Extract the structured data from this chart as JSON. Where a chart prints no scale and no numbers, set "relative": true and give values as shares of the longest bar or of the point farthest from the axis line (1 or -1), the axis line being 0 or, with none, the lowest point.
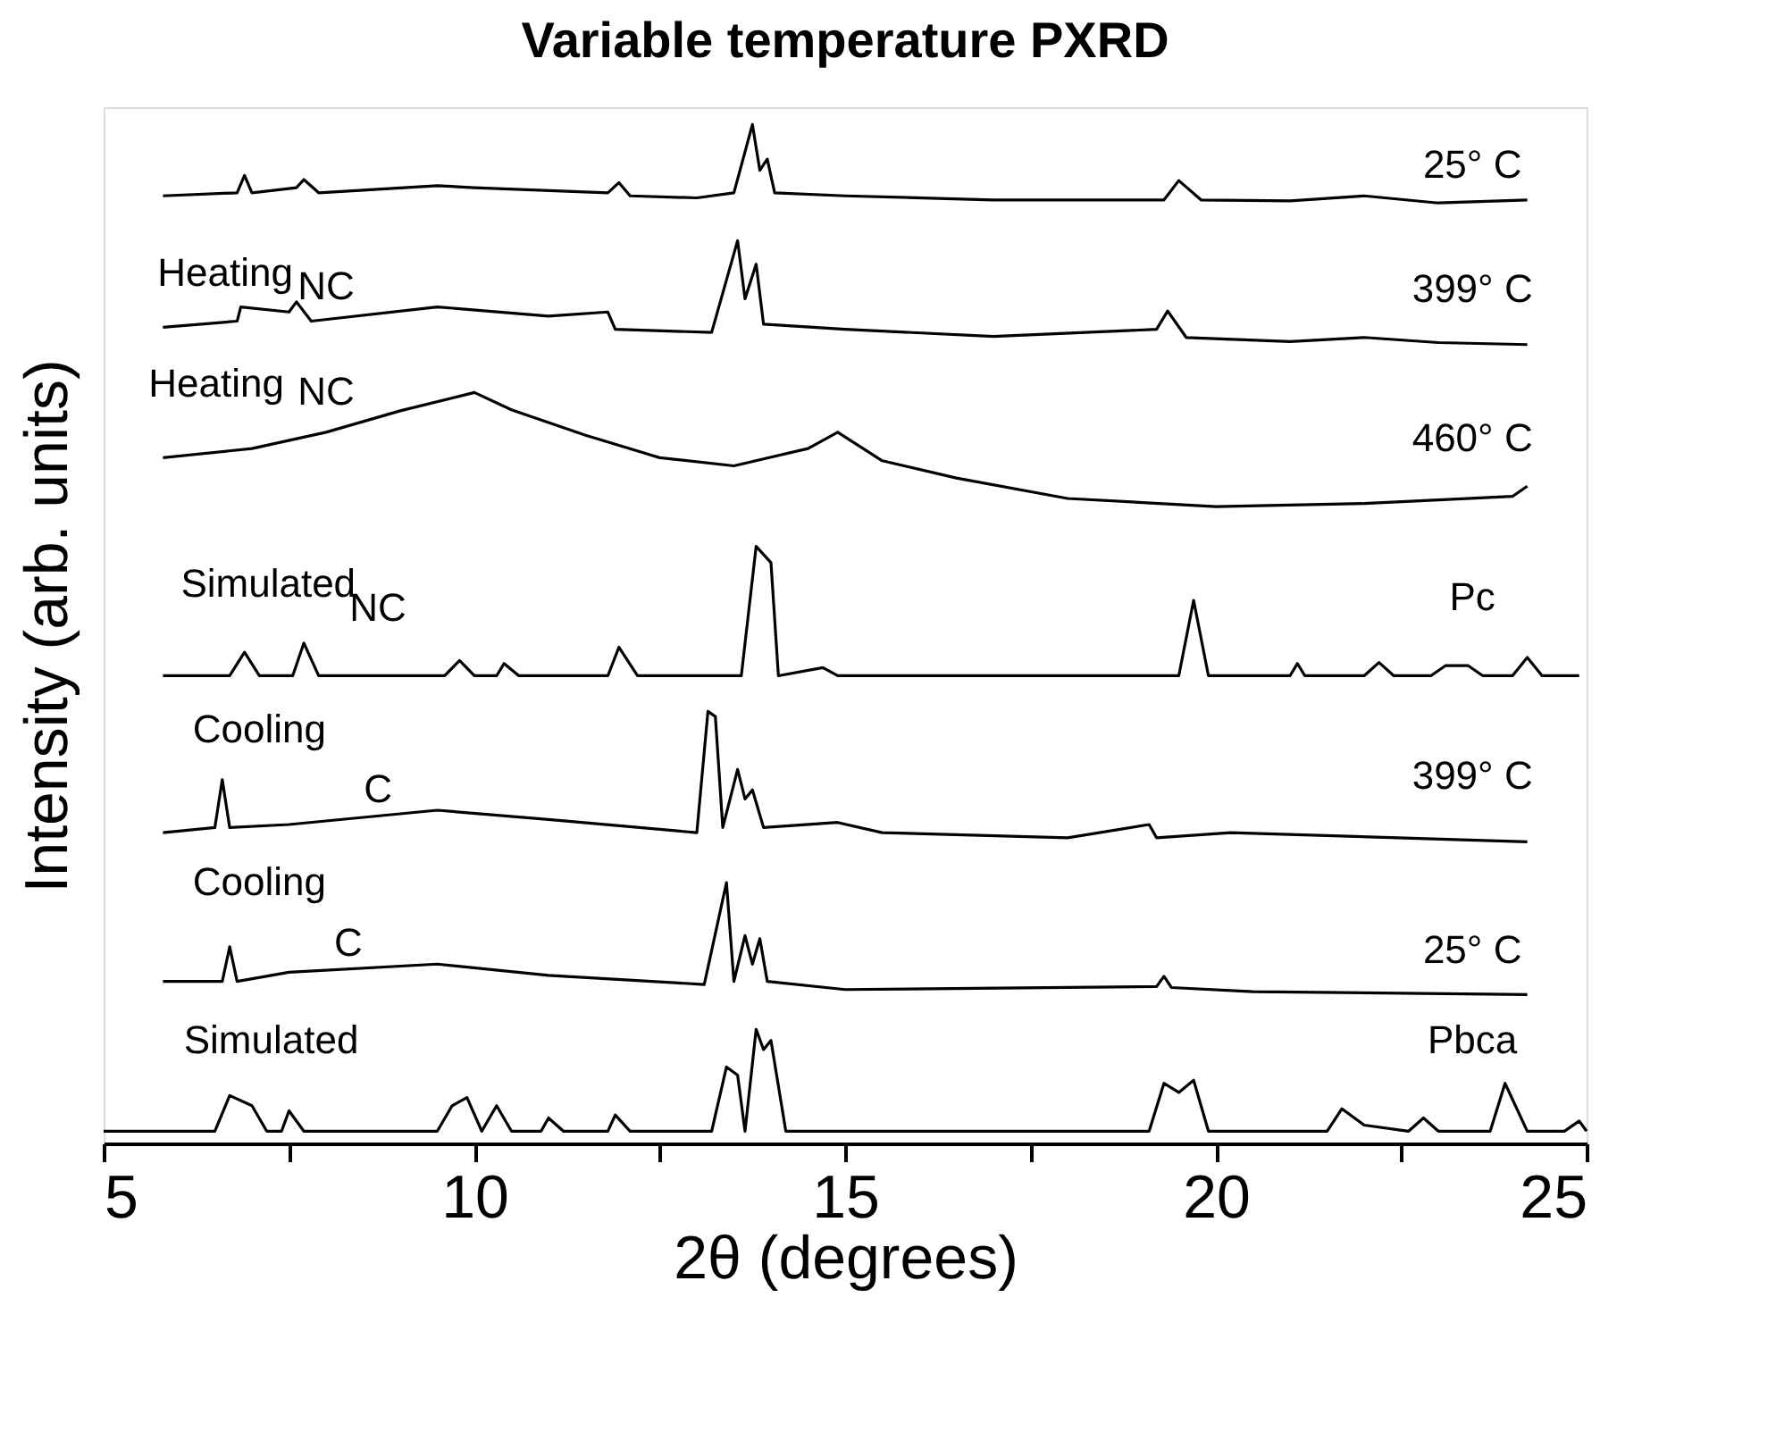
{
  "chart_data": {
    "type": "line",
    "title": "Variable temperature PXRD",
    "xlabel": "2θ (degrees)",
    "ylabel": "Intensity (arb. units)",
    "relative": true,
    "grid": false,
    "marker": "none",
    "line_style": "solid",
    "xlim": [
      5,
      25
    ],
    "xticks": [
      5,
      {
        "value": 7.5,
        "label": null
      },
      10,
      {
        "value": 12.5,
        "label": null
      },
      15,
      {
        "value": 17.5,
        "label": null
      },
      20,
      {
        "value": 22.5,
        "label": null
      },
      25
    ],
    "series": [
      {
        "color": "#000000",
        "x": [
          5.8,
          6.8,
          6.9,
          7.0,
          7.6,
          7.7,
          7.9,
          9.5,
          10.0,
          11.8,
          11.95,
          12.1,
          13.0,
          13.5,
          13.75,
          13.85,
          13.95,
          14.05,
          15,
          17,
          19.3,
          19.5,
          19.8,
          21,
          22,
          23,
          24.2
        ],
        "values": [
          0.93,
          0.933,
          0.95,
          0.933,
          0.938,
          0.946,
          0.933,
          0.94,
          0.938,
          0.933,
          0.943,
          0.93,
          0.928,
          0.933,
          1.0,
          0.955,
          0.966,
          0.933,
          0.93,
          0.926,
          0.926,
          0.945,
          0.926,
          0.925,
          0.93,
          0.923,
          0.926
        ]
      },
      {
        "color": "#000000",
        "x": [
          5.8,
          6.8,
          6.85,
          7.5,
          7.6,
          7.8,
          9.5,
          11.0,
          11.8,
          11.9,
          13.2,
          13.55,
          13.65,
          13.8,
          13.9,
          15,
          17,
          19.2,
          19.35,
          19.6,
          21,
          22,
          23,
          24.2
        ],
        "values": [
          0.801,
          0.807,
          0.821,
          0.816,
          0.826,
          0.807,
          0.821,
          0.812,
          0.816,
          0.799,
          0.796,
          0.886,
          0.829,
          0.863,
          0.804,
          0.799,
          0.792,
          0.799,
          0.817,
          0.791,
          0.787,
          0.791,
          0.786,
          0.784
        ]
      },
      {
        "color": "#000000",
        "x": [
          5.8,
          7,
          8,
          9,
          10,
          10.5,
          11.5,
          12.5,
          13.5,
          14.5,
          14.9,
          15.5,
          16.5,
          18,
          20,
          22,
          24,
          24.2
        ],
        "values": [
          0.673,
          0.682,
          0.698,
          0.719,
          0.737,
          0.72,
          0.695,
          0.673,
          0.665,
          0.682,
          0.698,
          0.67,
          0.653,
          0.633,
          0.625,
          0.628,
          0.635,
          0.645
        ]
      },
      {
        "color": "#000000",
        "x": [
          5.8,
          6.7,
          6.9,
          7.1,
          7.55,
          7.7,
          7.9,
          9.6,
          9.8,
          10.0,
          10.3,
          10.4,
          10.6,
          11.8,
          11.95,
          12.2,
          13.6,
          13.8,
          14.0,
          14.1,
          14.7,
          14.9,
          19.5,
          19.7,
          19.9,
          21.0,
          21.1,
          21.2,
          22.0,
          22.2,
          22.4,
          22.9,
          23.1,
          23.4,
          23.6,
          24.0,
          24.2,
          24.4,
          24.9
        ],
        "values": [
          0.459,
          0.459,
          0.482,
          0.459,
          0.459,
          0.491,
          0.459,
          0.459,
          0.474,
          0.459,
          0.459,
          0.471,
          0.459,
          0.459,
          0.487,
          0.459,
          0.459,
          0.586,
          0.57,
          0.459,
          0.467,
          0.459,
          0.459,
          0.533,
          0.459,
          0.459,
          0.471,
          0.459,
          0.459,
          0.472,
          0.459,
          0.459,
          0.469,
          0.469,
          0.459,
          0.459,
          0.477,
          0.459,
          0.459
        ]
      },
      {
        "color": "#000000",
        "x": [
          5.8,
          6.5,
          6.6,
          6.7,
          7.5,
          9.5,
          11,
          13.0,
          13.15,
          13.25,
          13.35,
          13.55,
          13.65,
          13.75,
          13.9,
          14.9,
          15.5,
          18,
          19.1,
          19.2,
          20.2,
          24.2
        ],
        "values": [
          0.305,
          0.31,
          0.357,
          0.31,
          0.313,
          0.327,
          0.318,
          0.305,
          0.424,
          0.419,
          0.31,
          0.367,
          0.338,
          0.347,
          0.31,
          0.315,
          0.305,
          0.3,
          0.313,
          0.3,
          0.305,
          0.296
        ]
      },
      {
        "color": "#000000",
        "x": [
          5.8,
          6.6,
          6.7,
          6.8,
          7.5,
          9.5,
          11,
          13.1,
          13.4,
          13.5,
          13.65,
          13.75,
          13.85,
          13.95,
          15,
          19.2,
          19.3,
          19.4,
          20.5,
          24.2
        ],
        "values": [
          0.159,
          0.159,
          0.193,
          0.159,
          0.168,
          0.176,
          0.165,
          0.156,
          0.256,
          0.159,
          0.204,
          0.176,
          0.201,
          0.159,
          0.151,
          0.154,
          0.164,
          0.153,
          0.149,
          0.146
        ]
      },
      {
        "color": "#000000",
        "x": [
          5.0,
          6.5,
          6.7,
          7.0,
          7.2,
          7.4,
          7.5,
          7.7,
          9.5,
          9.7,
          9.9,
          10.1,
          10.3,
          10.5,
          10.9,
          11.0,
          11.2,
          11.8,
          11.9,
          12.1,
          13.2,
          13.4,
          13.55,
          13.65,
          13.8,
          13.9,
          14.0,
          14.2,
          19.1,
          19.3,
          19.5,
          19.7,
          19.9,
          21.5,
          21.7,
          22.0,
          22.6,
          22.8,
          23.0,
          23.7,
          23.9,
          24.2,
          24.7,
          24.9,
          25.0
        ],
        "values": [
          0.012,
          0.012,
          0.047,
          0.037,
          0.012,
          0.012,
          0.032,
          0.012,
          0.012,
          0.037,
          0.045,
          0.012,
          0.037,
          0.012,
          0.012,
          0.025,
          0.012,
          0.012,
          0.028,
          0.012,
          0.012,
          0.075,
          0.067,
          0.012,
          0.112,
          0.092,
          0.101,
          0.012,
          0.012,
          0.059,
          0.05,
          0.062,
          0.012,
          0.012,
          0.034,
          0.018,
          0.012,
          0.025,
          0.012,
          0.012,
          0.059,
          0.012,
          0.012,
          0.022,
          0.012
        ]
      }
    ],
    "annotations": [
      "25° C",
      "Heating",
      "NC",
      "399° C",
      "Heating",
      "NC",
      "460° C",
      "Simulated",
      "NC",
      "Pc",
      "Cooling",
      "C",
      "399° C",
      "Cooling",
      "C",
      "25° C",
      "Simulated",
      "Pbca"
    ]
  }
}
